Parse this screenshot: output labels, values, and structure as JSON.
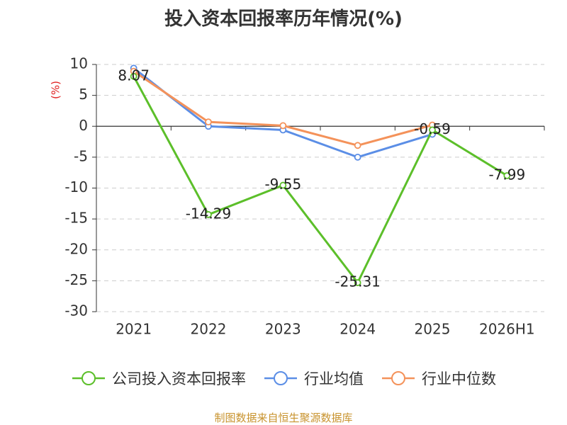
{
  "chart_data": {
    "type": "line",
    "title": "投入资本回报率历年情况(%)",
    "ylabel": "(%)",
    "xlabel": "",
    "categories": [
      "2021",
      "2022",
      "2023",
      "2024",
      "2025",
      "2026H1"
    ],
    "ylim": [
      -30,
      10
    ],
    "yticks": [
      10,
      5,
      0,
      -5,
      -10,
      -15,
      -20,
      -25,
      -30
    ],
    "grid": true,
    "legend_position": "bottom",
    "series": [
      {
        "name": "公司投入资本回报率",
        "color": "#5cbf2a",
        "values": [
          8.07,
          -14.29,
          -9.55,
          -25.31,
          -0.59,
          -7.99
        ],
        "labels": [
          "8.07",
          "-14.29",
          "-9.55",
          "-25.31",
          "-0.59",
          "-7.99"
        ]
      },
      {
        "name": "行业均值",
        "color": "#5b8ee6",
        "values": [
          9.4,
          0.0,
          -0.6,
          -5.0,
          -1.3,
          null
        ]
      },
      {
        "name": "行业中位数",
        "color": "#f4925a",
        "values": [
          8.9,
          0.7,
          0.1,
          -3.1,
          0.2,
          null
        ]
      }
    ]
  },
  "source_text": "制图数据来自恒生聚源数据库",
  "colors": {
    "axis": "#333333",
    "grid": "#cccccc",
    "ylabel": "#e02020",
    "source": "#c8932e"
  }
}
